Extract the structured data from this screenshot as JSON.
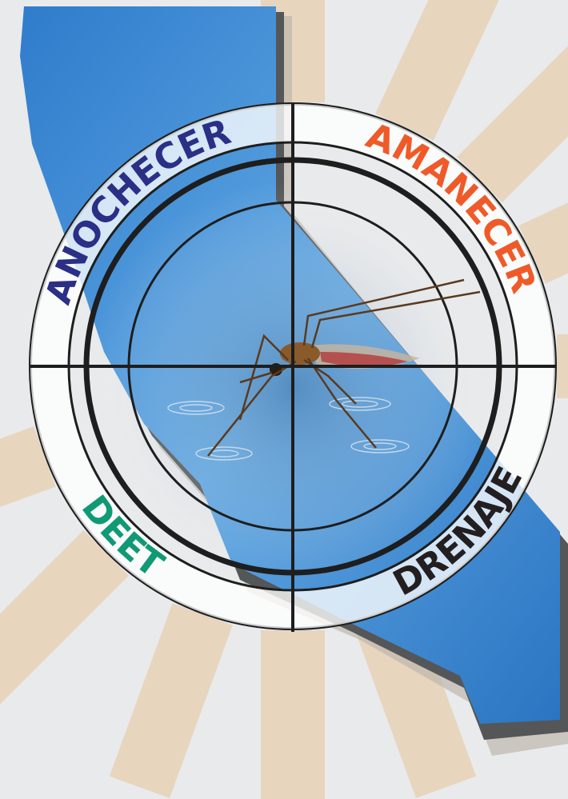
{
  "ring_labels": [
    "ANOCHECER",
    "AMANECER",
    "DEET",
    "DRENAJE"
  ]
}
